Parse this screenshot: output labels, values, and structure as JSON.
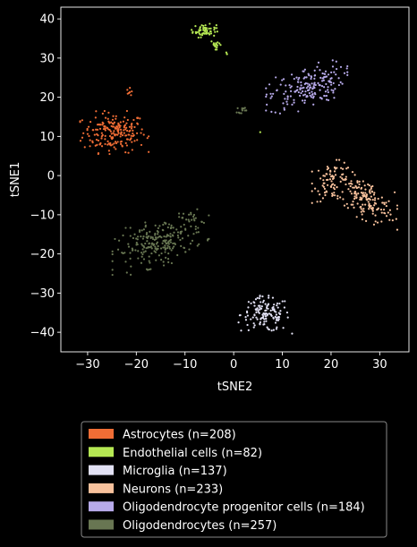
{
  "chart_data": {
    "type": "scatter",
    "xlabel": "tSNE2",
    "ylabel": "tSNE1",
    "xlim": [
      -35.5,
      36
    ],
    "ylim": [
      -45,
      43
    ],
    "xticks": [
      -30,
      -20,
      -10,
      0,
      10,
      20,
      30
    ],
    "yticks": [
      -40,
      -30,
      -20,
      -10,
      0,
      10,
      20,
      30,
      40
    ],
    "grid": false,
    "legend_position": "below",
    "background": "#000000",
    "series": [
      {
        "name": "Astrocytes (n=208)",
        "color": "#f06d35",
        "clusters": [
          {
            "cx": -24.5,
            "cy": 11,
            "sx": 3.2,
            "sy": 2.5,
            "count": 200
          },
          {
            "cx": -21.3,
            "cy": 21.3,
            "sx": 0.3,
            "sy": 0.5,
            "count": 8
          }
        ]
      },
      {
        "name": "Endothelial cells (n=82)",
        "color": "#b5e853",
        "clusters": [
          {
            "cx": -6,
            "cy": 37,
            "sx": 1.2,
            "sy": 0.8,
            "count": 60
          },
          {
            "cx": -3.5,
            "cy": 33.5,
            "sx": 0.6,
            "sy": 0.6,
            "count": 18
          },
          {
            "cx": -1.7,
            "cy": 31,
            "sx": 0.2,
            "sy": 0.2,
            "count": 3
          },
          {
            "cx": 5.5,
            "cy": 11.2,
            "sx": 0.05,
            "sy": 0.05,
            "count": 1
          }
        ]
      },
      {
        "name": "Microglia (n=137)",
        "color": "#e2e1f4",
        "clusters": [
          {
            "cx": 6.5,
            "cy": -35.5,
            "sx": 2.5,
            "sy": 2.2,
            "count": 137
          }
        ]
      },
      {
        "name": "Neurons (n=233)",
        "color": "#f7c19c",
        "clusters": [
          {
            "cx": 20.5,
            "cy": -1.5,
            "sx": 2.0,
            "sy": 2.5,
            "count": 80
          },
          {
            "cx": 27,
            "cy": -6,
            "sx": 3.0,
            "sy": 2.5,
            "count": 153
          }
        ]
      },
      {
        "name": "Oligodendrocyte progenitor cells (n=184)",
        "color": "#b7aaea",
        "clusters": [
          {
            "cx": 15,
            "cy": 22.5,
            "sx": 3.8,
            "sy": 2.5,
            "count": 184
          }
        ]
      },
      {
        "name": "Oligodendrocytes (n=257)",
        "color": "#687652",
        "clusters": [
          {
            "cx": -15,
            "cy": -17,
            "sx": 4.5,
            "sy": 2.8,
            "count": 230
          },
          {
            "cx": -8.3,
            "cy": -11,
            "sx": 1.0,
            "sy": 1.0,
            "count": 15
          },
          {
            "cx": 1.7,
            "cy": 16.8,
            "sx": 0.5,
            "sy": 0.4,
            "count": 12
          }
        ]
      }
    ]
  }
}
